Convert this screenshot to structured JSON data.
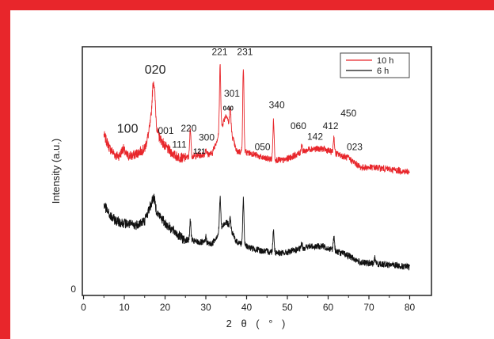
{
  "chart_data": {
    "type": "line",
    "xlabel": "2 θ ( ° )",
    "ylabel": "Intensity (a.u.)",
    "xlim": [
      0,
      80
    ],
    "x_ticks": [
      "0",
      "10",
      "20",
      "30",
      "40",
      "50",
      "60",
      "70",
      "80"
    ],
    "y_ticks": [
      "0"
    ],
    "legend_position": "top-right",
    "series": [
      {
        "name": "10 h",
        "color": "#e8262b",
        "peaks": [
          {
            "x": 5.0,
            "y": 6.3
          },
          {
            "x": 6.5,
            "y": 5.7
          },
          {
            "x": 8.0,
            "y": 5.4
          },
          {
            "x": 9.7,
            "y": 5.7
          },
          {
            "x": 12.0,
            "y": 5.4
          },
          {
            "x": 15.0,
            "y": 5.7
          },
          {
            "x": 16.3,
            "y": 6.6
          },
          {
            "x": 17.2,
            "y": 8.6
          },
          {
            "x": 18.3,
            "y": 6.3
          },
          {
            "x": 20.0,
            "y": 5.8
          },
          {
            "x": 22.5,
            "y": 5.4
          },
          {
            "x": 24.5,
            "y": 5.3
          },
          {
            "x": 26.2,
            "y": 6.6
          },
          {
            "x": 27.5,
            "y": 5.4
          },
          {
            "x": 30.0,
            "y": 5.7
          },
          {
            "x": 31.5,
            "y": 5.5
          },
          {
            "x": 33.5,
            "y": 9.3
          },
          {
            "x": 35.0,
            "y": 7.2
          },
          {
            "x": 36.0,
            "y": 7.5
          },
          {
            "x": 37.5,
            "y": 5.6
          },
          {
            "x": 39.2,
            "y": 9.2
          },
          {
            "x": 41.5,
            "y": 5.5
          },
          {
            "x": 44.0,
            "y": 5.3
          },
          {
            "x": 46.6,
            "y": 6.9
          },
          {
            "x": 49.0,
            "y": 5.2
          },
          {
            "x": 53.5,
            "y": 5.9
          },
          {
            "x": 55.5,
            "y": 5.7
          },
          {
            "x": 58.8,
            "y": 5.7
          },
          {
            "x": 61.4,
            "y": 6.2
          },
          {
            "x": 65.0,
            "y": 5.3
          },
          {
            "x": 68.0,
            "y": 4.9
          },
          {
            "x": 71.5,
            "y": 4.9
          },
          {
            "x": 76.0,
            "y": 4.8
          },
          {
            "x": 80.0,
            "y": 4.7
          }
        ]
      },
      {
        "name": "6 h",
        "color": "#111111",
        "peaks": [
          {
            "x": 5.0,
            "y": 3.3
          },
          {
            "x": 6.5,
            "y": 2.8
          },
          {
            "x": 8.0,
            "y": 2.6
          },
          {
            "x": 10.0,
            "y": 2.5
          },
          {
            "x": 12.5,
            "y": 2.4
          },
          {
            "x": 15.0,
            "y": 2.6
          },
          {
            "x": 16.3,
            "y": 3.2
          },
          {
            "x": 17.2,
            "y": 3.6
          },
          {
            "x": 18.3,
            "y": 2.9
          },
          {
            "x": 20.0,
            "y": 2.5
          },
          {
            "x": 22.5,
            "y": 2.1
          },
          {
            "x": 24.5,
            "y": 1.8
          },
          {
            "x": 26.2,
            "y": 2.6
          },
          {
            "x": 27.5,
            "y": 1.7
          },
          {
            "x": 30.0,
            "y": 1.9
          },
          {
            "x": 31.5,
            "y": 1.6
          },
          {
            "x": 33.5,
            "y": 3.6
          },
          {
            "x": 35.0,
            "y": 2.6
          },
          {
            "x": 36.0,
            "y": 2.7
          },
          {
            "x": 37.5,
            "y": 1.7
          },
          {
            "x": 39.2,
            "y": 3.5
          },
          {
            "x": 41.5,
            "y": 1.4
          },
          {
            "x": 44.0,
            "y": 1.3
          },
          {
            "x": 46.6,
            "y": 2.2
          },
          {
            "x": 49.0,
            "y": 1.2
          },
          {
            "x": 53.5,
            "y": 1.6
          },
          {
            "x": 55.5,
            "y": 1.5
          },
          {
            "x": 58.8,
            "y": 1.5
          },
          {
            "x": 61.4,
            "y": 1.9
          },
          {
            "x": 65.0,
            "y": 1.1
          },
          {
            "x": 68.0,
            "y": 0.8
          },
          {
            "x": 71.5,
            "y": 1.0
          },
          {
            "x": 76.0,
            "y": 0.7
          },
          {
            "x": 80.0,
            "y": 0.6
          }
        ]
      }
    ],
    "annotations": [
      {
        "text": "100",
        "x": 10.8,
        "y": 6.4,
        "size": 16
      },
      {
        "text": "020",
        "x": 17.6,
        "y": 8.95,
        "size": 16
      },
      {
        "text": "001",
        "x": 20.2,
        "y": 6.35,
        "size": 12
      },
      {
        "text": "220",
        "x": 25.8,
        "y": 6.45,
        "size": 12
      },
      {
        "text": "111",
        "x": 23.5,
        "y": 5.75,
        "size": 12
      },
      {
        "text": "121",
        "x": 28.4,
        "y": 5.5,
        "size": 9
      },
      {
        "text": "300",
        "x": 30.2,
        "y": 6.05,
        "size": 12
      },
      {
        "text": "221",
        "x": 33.4,
        "y": 9.75,
        "size": 12
      },
      {
        "text": "301",
        "x": 36.4,
        "y": 7.95,
        "size": 12
      },
      {
        "text": "040",
        "x": 35.5,
        "y": 7.35,
        "size": 8
      },
      {
        "text": "231",
        "x": 39.6,
        "y": 9.75,
        "size": 12
      },
      {
        "text": "050",
        "x": 43.9,
        "y": 5.65,
        "size": 12
      },
      {
        "text": "340",
        "x": 47.4,
        "y": 7.45,
        "size": 12
      },
      {
        "text": "060",
        "x": 52.7,
        "y": 6.55,
        "size": 12
      },
      {
        "text": "142",
        "x": 56.8,
        "y": 6.1,
        "size": 12
      },
      {
        "text": "412",
        "x": 60.6,
        "y": 6.55,
        "size": 12
      },
      {
        "text": "450",
        "x": 65.0,
        "y": 7.1,
        "size": 12
      },
      {
        "text": "023",
        "x": 66.5,
        "y": 5.65,
        "size": 12
      }
    ]
  }
}
